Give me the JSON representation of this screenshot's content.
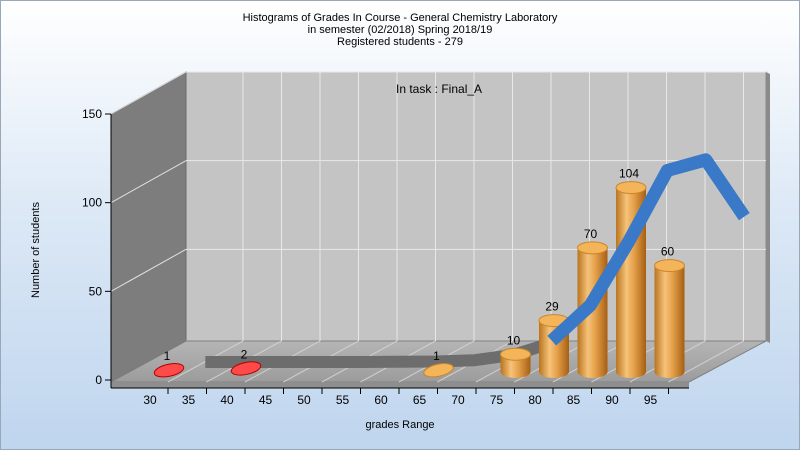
{
  "chart_data": {
    "type": "bar",
    "title_lines": [
      "Histograms of Grades  In Course - General Chemistry Laboratory",
      "in semester  (02/2018) Spring 2018/19",
      "Registered students - 279"
    ],
    "annotation": "In task : Final_A",
    "xlabel": "grades Range",
    "ylabel": "Number of students",
    "ylim": [
      0,
      150
    ],
    "yticks": [
      0,
      50,
      100,
      150
    ],
    "categories": [
      "30",
      "35",
      "40",
      "45",
      "50",
      "55",
      "60",
      "65",
      "70",
      "75",
      "80",
      "85",
      "90",
      "95"
    ],
    "values": [
      1,
      0,
      2,
      0,
      0,
      0,
      0,
      1,
      0,
      10,
      29,
      70,
      104,
      60
    ],
    "bar_colors": {
      "low": "#dd1111",
      "high": "#e8a43c"
    },
    "low_threshold_category": "55",
    "curve": {
      "type": "normal-distribution-ribbon",
      "color": "#3a78c8",
      "shadow_color": "#6d6d6d",
      "x": [
        32.5,
        37.5,
        42.5,
        47.5,
        52.5,
        57.5,
        62.5,
        67.5,
        72.5,
        77.5,
        82.5,
        87.5,
        92.5,
        97.5,
        102.5
      ],
      "y": [
        0,
        0,
        0,
        0,
        0,
        0.1,
        0.3,
        1,
        4,
        12,
        32,
        68,
        108,
        114,
        82
      ]
    },
    "grid": true,
    "style": "3d"
  }
}
